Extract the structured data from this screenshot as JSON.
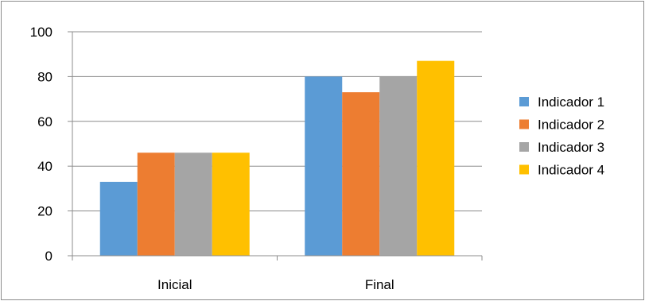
{
  "chart_data": {
    "type": "bar",
    "categories": [
      "Inicial",
      "Final"
    ],
    "series": [
      {
        "name": "Indicador 1",
        "values": [
          33,
          80
        ],
        "color": "#5b9bd5"
      },
      {
        "name": "Indicador 2",
        "values": [
          46,
          73
        ],
        "color": "#ed7d31"
      },
      {
        "name": "Indicador 3",
        "values": [
          46,
          80
        ],
        "color": "#a5a5a5"
      },
      {
        "name": "Indicador 4",
        "values": [
          46,
          87
        ],
        "color": "#ffc000"
      }
    ],
    "yticks": [
      0,
      20,
      40,
      60,
      80,
      100
    ],
    "ylim": [
      0,
      100
    ],
    "grid": true,
    "legend_position": "right"
  }
}
